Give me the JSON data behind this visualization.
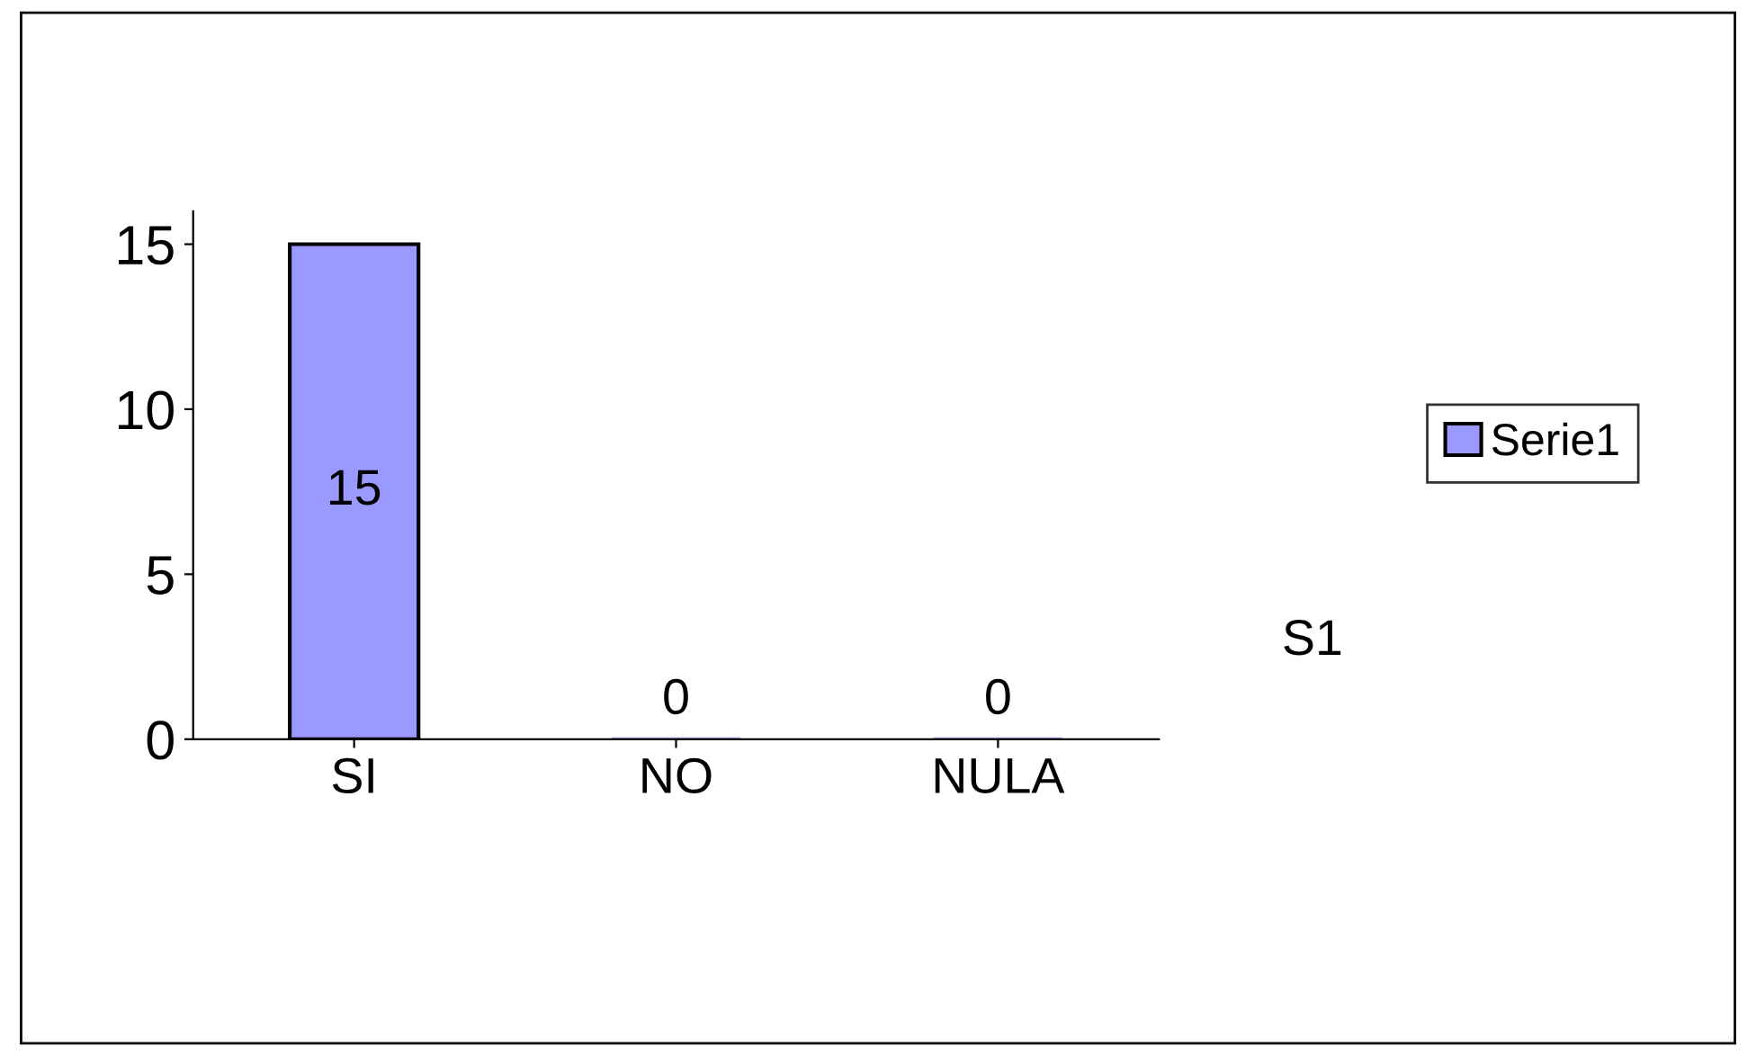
{
  "chart_data": {
    "type": "bar",
    "categories": [
      "SI",
      "NO",
      "NULA"
    ],
    "series": [
      {
        "name": "Serie1",
        "color": "#9999ff",
        "values": [
          15,
          0,
          0
        ]
      }
    ],
    "ylim": [
      0,
      16
    ],
    "yticks": [
      0,
      5,
      10,
      15
    ],
    "data_labels": true,
    "grid": false,
    "legend": "right",
    "annotations": [
      "S1"
    ]
  }
}
